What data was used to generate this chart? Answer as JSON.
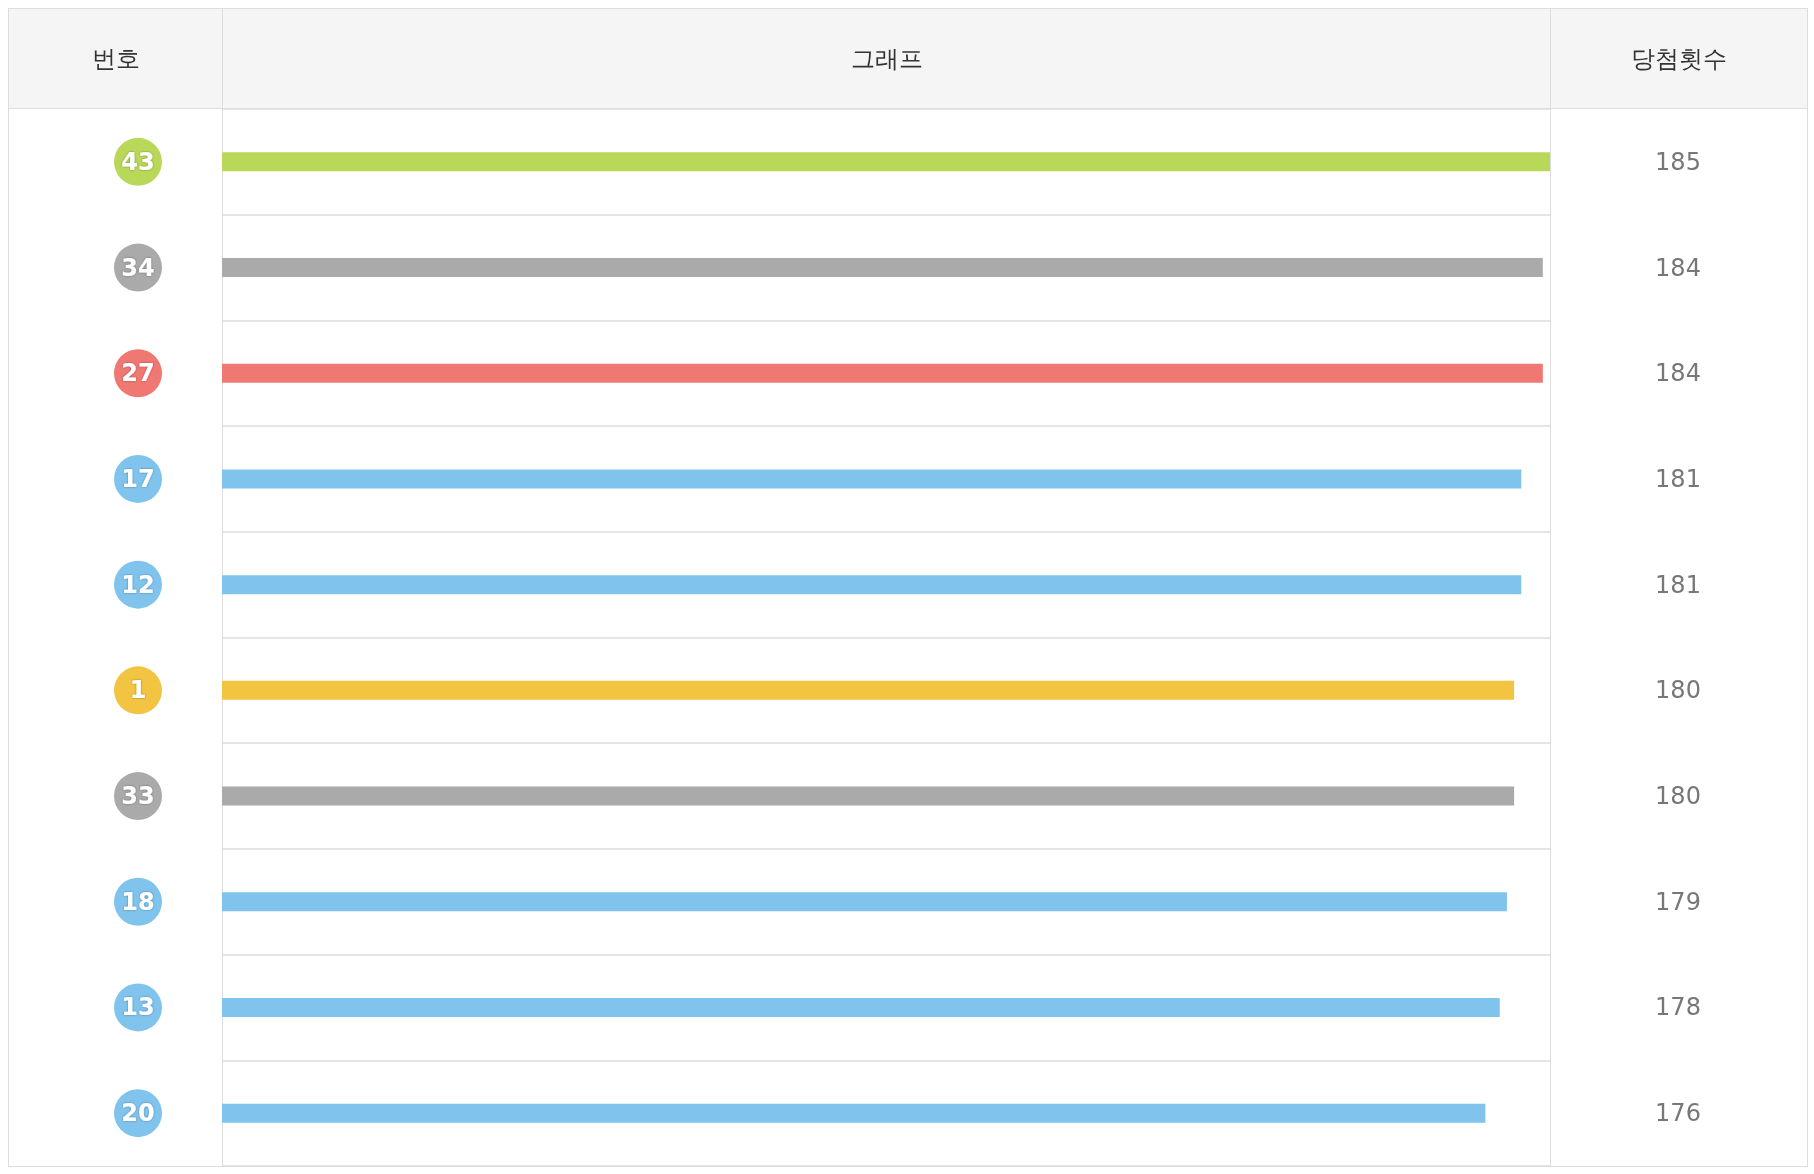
{
  "chart_data": {
    "type": "bar",
    "orientation": "horizontal",
    "xlabel": "그래프",
    "ylabel": "번호",
    "annotations": [
      "당첨횟수"
    ],
    "categories": [
      "43",
      "34",
      "27",
      "17",
      "12",
      "1",
      "33",
      "18",
      "13",
      "20"
    ],
    "values": [
      185,
      184,
      184,
      181,
      181,
      180,
      180,
      179,
      178,
      176
    ],
    "colors": [
      "#b9d85a",
      "#aaaaaa",
      "#ef7873",
      "#80c4ee",
      "#80c4ee",
      "#f2c442",
      "#aaaaaa",
      "#80c4ee",
      "#80c4ee",
      "#80c4ee"
    ],
    "xlim": [
      0,
      185
    ],
    "tick_labels": "y",
    "grid": "y",
    "data_labels": true
  }
}
